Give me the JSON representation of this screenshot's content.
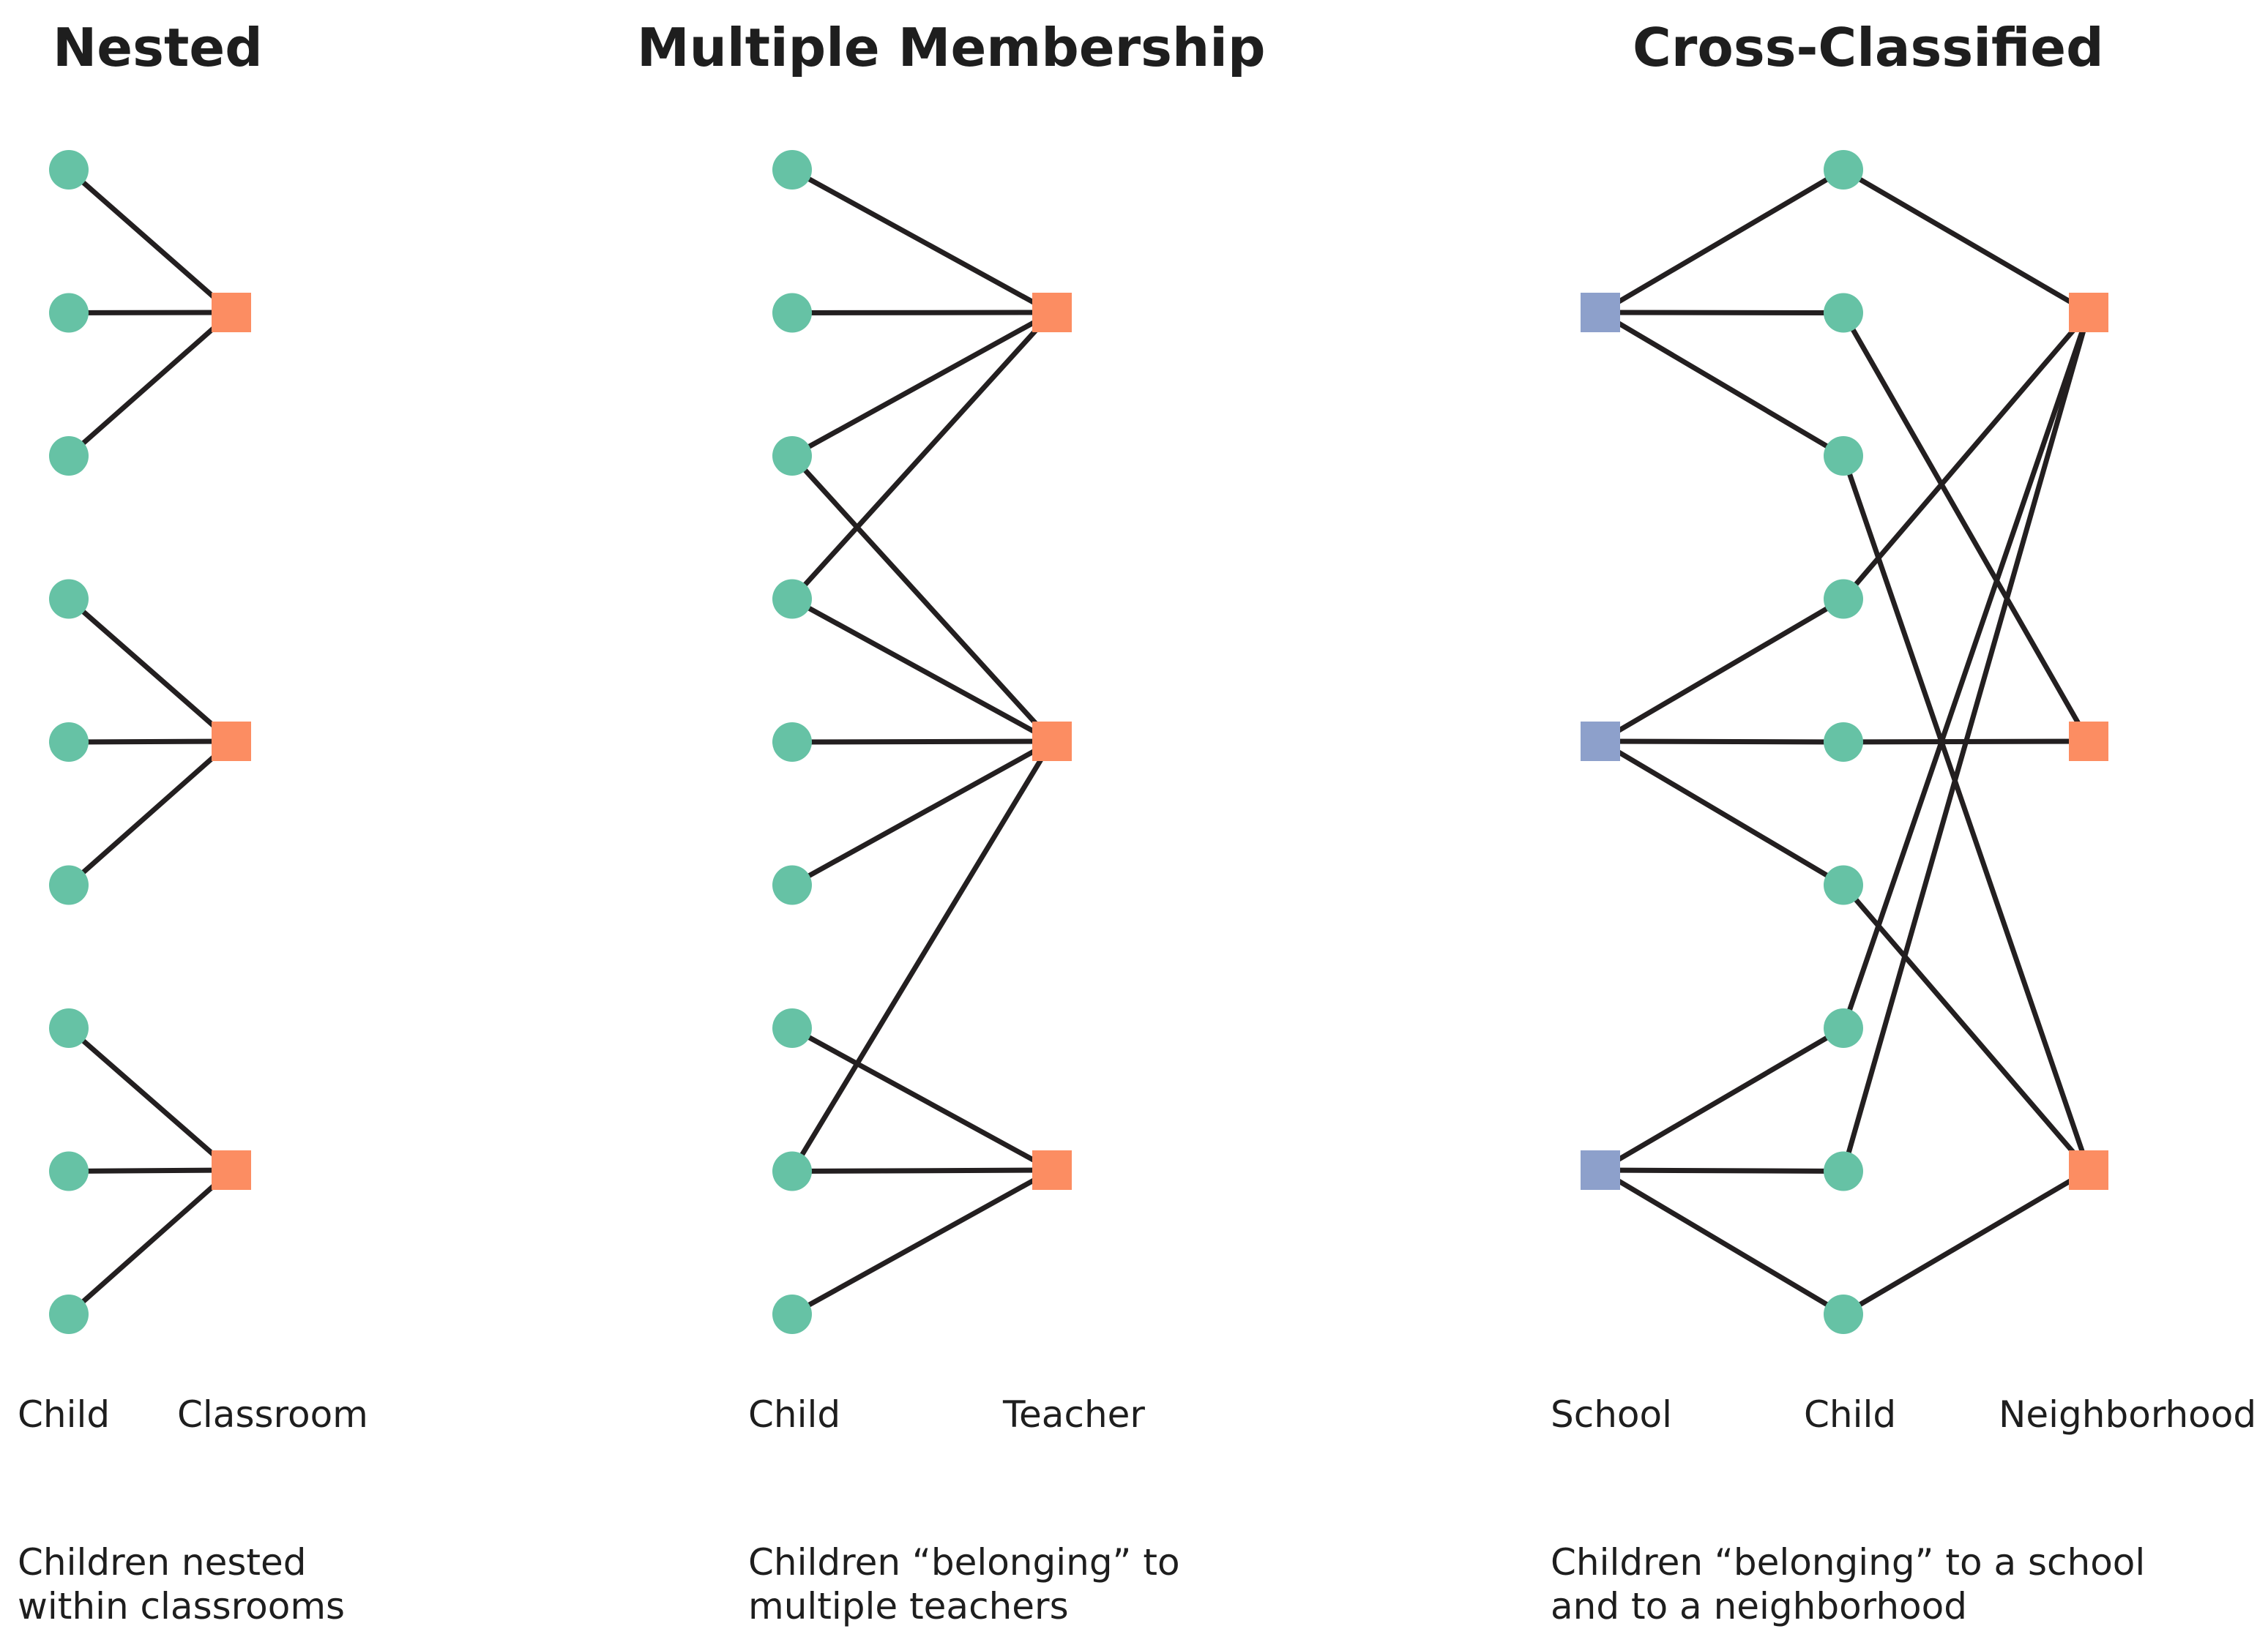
{
  "colors": {
    "child_node": "#66c2a5",
    "classroom_teacher_neighborhood_node": "#fc8d62",
    "school_node": "#8da0cb",
    "edge": "#231f20",
    "text": "#1e1e1e"
  },
  "panels": [
    {
      "id": "nested",
      "title": "Nested",
      "labels": [
        "Child",
        "Classroom"
      ],
      "caption": [
        "Children nested",
        "within classrooms"
      ],
      "columns": [
        {
          "kind": "child",
          "count": 9
        },
        {
          "kind": "classroom",
          "count": 3
        }
      ],
      "edges": [
        [
          0,
          0
        ],
        [
          1,
          0
        ],
        [
          2,
          0
        ],
        [
          3,
          1
        ],
        [
          4,
          1
        ],
        [
          5,
          1
        ],
        [
          6,
          2
        ],
        [
          7,
          2
        ],
        [
          8,
          2
        ]
      ]
    },
    {
      "id": "multiple-membership",
      "title": "Multiple Membership",
      "labels": [
        "Child",
        "Teacher"
      ],
      "caption": [
        "Children “belonging” to",
        "multiple teachers"
      ],
      "columns": [
        {
          "kind": "child",
          "count": 9
        },
        {
          "kind": "teacher",
          "count": 3
        }
      ],
      "edges": [
        [
          0,
          0
        ],
        [
          1,
          0
        ],
        [
          2,
          0
        ],
        [
          3,
          0
        ],
        [
          2,
          1
        ],
        [
          3,
          1
        ],
        [
          4,
          1
        ],
        [
          5,
          1
        ],
        [
          7,
          1
        ],
        [
          6,
          2
        ],
        [
          7,
          2
        ],
        [
          8,
          2
        ]
      ]
    },
    {
      "id": "cross-classified",
      "title": "Cross-Classified",
      "labels": [
        "School",
        "Child",
        "Neighborhood"
      ],
      "caption": [
        "Children “belonging” to a school",
        "and to a neighborhood"
      ],
      "columns": [
        {
          "kind": "school",
          "count": 3
        },
        {
          "kind": "child",
          "count": 9
        },
        {
          "kind": "neighborhood",
          "count": 3
        }
      ],
      "school_child_edges": [
        [
          0,
          0
        ],
        [
          0,
          1
        ],
        [
          0,
          2
        ],
        [
          1,
          3
        ],
        [
          1,
          4
        ],
        [
          1,
          5
        ],
        [
          2,
          6
        ],
        [
          2,
          7
        ],
        [
          2,
          8
        ]
      ],
      "child_neighborhood_edges": [
        [
          0,
          0
        ],
        [
          3,
          0
        ],
        [
          6,
          0
        ],
        [
          7,
          0
        ],
        [
          4,
          1
        ],
        [
          1,
          1
        ],
        [
          2,
          2
        ],
        [
          5,
          2
        ],
        [
          8,
          2
        ]
      ]
    }
  ]
}
